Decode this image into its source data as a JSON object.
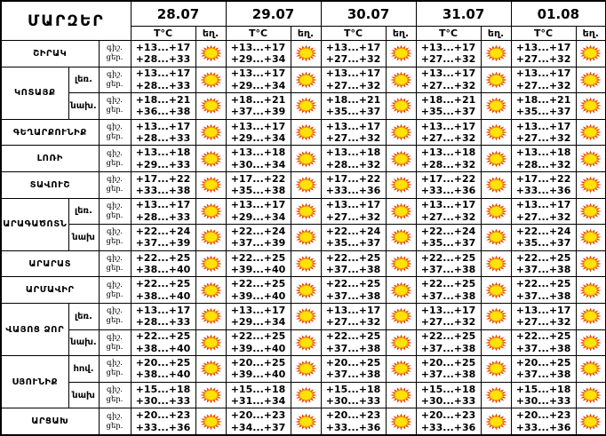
{
  "header": {
    "regions_label": "ՄԱՐԶԵՐ",
    "dates": [
      "28.07",
      "29.07",
      "30.07",
      "31.07",
      "01.08"
    ],
    "temp_label": "T°C",
    "weather_label": "եղ."
  },
  "labels": {
    "night": "գիշ.",
    "day": "ցեր."
  },
  "icons": {
    "weather": "sun-icon"
  },
  "colors": {
    "background": "#FFFFFF",
    "border": "#000000",
    "text": "#000000",
    "sun_rays": "#E0400A",
    "sun_ring": "#F59B00",
    "sun_core": "#FFE20A"
  },
  "rows": [
    {
      "region": "ՇԻՐԱԿ",
      "sub": "",
      "night": [
        "+13...+17",
        "+13...+17",
        "+13...+17",
        "+13...+17",
        "+13...+17"
      ],
      "day": [
        "+28...+33",
        "+29...+34",
        "+27...+32",
        "+27...+32",
        "+27...+32"
      ],
      "weather": [
        "sun",
        "sun",
        "sun",
        "sun",
        "sun"
      ]
    },
    {
      "region": "ԿՈՏԱՅՔ",
      "group_rows": 2,
      "sub": "լեռ.",
      "night": [
        "+13...+17",
        "+13...+17",
        "+13...+17",
        "+13...+17",
        "+13...+17"
      ],
      "day": [
        "+28...+33",
        "+29...+34",
        "+27...+32",
        "+27...+32",
        "+27...+32"
      ],
      "weather": [
        "sun",
        "sun",
        "sun",
        "sun",
        "sun"
      ]
    },
    {
      "region": "",
      "sub": "նախ.",
      "night": [
        "+18...+21",
        "+18...+21",
        "+18...+21",
        "+18...+21",
        "+18...+21"
      ],
      "day": [
        "+36...+38",
        "+37...+39",
        "+35...+37",
        "+35...+37",
        "+35...+37"
      ],
      "weather": [
        "sun",
        "sun",
        "sun",
        "sun",
        "sun"
      ]
    },
    {
      "region": "ԳԵՂԱՐՔՈՒՆԻՔ",
      "sub": "",
      "night": [
        "+13...+17",
        "+13...+17",
        "+13...+17",
        "+13...+17",
        "+13...+17"
      ],
      "day": [
        "+28...+33",
        "+29...+34",
        "+27...+32",
        "+27...+32",
        "+27...+32"
      ],
      "weather": [
        "sun",
        "sun",
        "sun",
        "sun",
        "sun"
      ]
    },
    {
      "region": "ԼՈՌԻ",
      "sub": "",
      "night": [
        "+13...+18",
        "+13...+18",
        "+13...+18",
        "+13...+18",
        "+13...+18"
      ],
      "day": [
        "+29...+33",
        "+30...+34",
        "+28...+32",
        "+28...+32",
        "+28...+32"
      ],
      "weather": [
        "sun",
        "sun",
        "sun",
        "sun",
        "sun"
      ]
    },
    {
      "region": "ՏԱՎՈՒՇ",
      "sub": "",
      "night": [
        "+17...+22",
        "+17...+22",
        "+17...+22",
        "+17...+22",
        "+17...+22"
      ],
      "day": [
        "+33...+38",
        "+35...+38",
        "+33...+36",
        "+33...+36",
        "+33...+36"
      ],
      "weather": [
        "sun",
        "sun",
        "sun",
        "sun",
        "sun"
      ]
    },
    {
      "region": "ԱՐԱԳԱԾՈՏՆ",
      "group_rows": 2,
      "sub": "լեռ.",
      "night": [
        "+13...+17",
        "+13...+17",
        "+13...+17",
        "+13...+17",
        "+13...+17"
      ],
      "day": [
        "+28...+33",
        "+29...+34",
        "+27...+32",
        "+27...+32",
        "+27...+32"
      ],
      "weather": [
        "sun",
        "sun",
        "sun",
        "sun",
        "sun"
      ]
    },
    {
      "region": "",
      "sub": "նախ",
      "night": [
        "+22...+24",
        "+22...+24",
        "+22...+24",
        "+22...+24",
        "+22...+24"
      ],
      "day": [
        "+37...+39",
        "+37...+39",
        "+35...+37",
        "+35...+37",
        "+35...+37"
      ],
      "weather": [
        "sun",
        "sun",
        "sun",
        "sun",
        "sun"
      ]
    },
    {
      "region": "ԱՐԱՐԱՏ",
      "sub": "",
      "night": [
        "+22...+25",
        "+22...+25",
        "+22...+25",
        "+22...+25",
        "+22...+25"
      ],
      "day": [
        "+38...+40",
        "+39...+40",
        "+37...+38",
        "+37...+38",
        "+37...+38"
      ],
      "weather": [
        "sun",
        "sun",
        "sun",
        "sun",
        "sun"
      ]
    },
    {
      "region": "ԱՐՄԱՎԻՐ",
      "sub": "",
      "night": [
        "+22...+25",
        "+22...+25",
        "+22...+25",
        "+22...+25",
        "+22...+25"
      ],
      "day": [
        "+38...+40",
        "+39...+40",
        "+37...+38",
        "+37...+38",
        "+37...+38"
      ],
      "weather": [
        "sun",
        "sun",
        "sun",
        "sun",
        "sun"
      ]
    },
    {
      "region": "ՎԱՅՈՑ ՁՈՐ",
      "group_rows": 2,
      "sub": "լեռ.",
      "night": [
        "+13...+17",
        "+13...+17",
        "+13...+17",
        "+13...+17",
        "+13...+17"
      ],
      "day": [
        "+28...+33",
        "+29...+34",
        "+27...+32",
        "+27...+32",
        "+27...+32"
      ],
      "weather": [
        "sun",
        "sun",
        "sun",
        "sun",
        "sun"
      ]
    },
    {
      "region": "",
      "sub": "նախ.",
      "night": [
        "+22...+25",
        "+22...+25",
        "+22...+25",
        "+22...+25",
        "+22...+25"
      ],
      "day": [
        "+38...+40",
        "+39...+40",
        "+37...+38",
        "+37...+38",
        "+37...+38"
      ],
      "weather": [
        "sun",
        "sun",
        "sun",
        "sun",
        "sun"
      ]
    },
    {
      "region": "ՍՅՈՒՆԻՔ",
      "group_rows": 2,
      "sub": "հով.",
      "night": [
        "+20...+25",
        "+20...+25",
        "+20...+25",
        "+20...+25",
        "+20...+25"
      ],
      "day": [
        "+38...+40",
        "+39...+40",
        "+37...+38",
        "+37...+38",
        "+37...+38"
      ],
      "weather": [
        "sun",
        "sun",
        "sun",
        "sun",
        "sun"
      ]
    },
    {
      "region": "",
      "sub": "նախ",
      "night": [
        "+15...+18",
        "+15...+18",
        "+15...+18",
        "+15...+18",
        "+15...+18"
      ],
      "day": [
        "+30...+33",
        "+31...+34",
        "+30...+33",
        "+30...+33",
        "+30...+33"
      ],
      "weather": [
        "sun",
        "sun",
        "sun",
        "sun",
        "sun"
      ]
    },
    {
      "region": "ԱՐՑԱԽ",
      "sub": "",
      "night": [
        "+20...+23",
        "+20...+23",
        "+20...+23",
        "+20...+23",
        "+20...+23"
      ],
      "day": [
        "+33...+36",
        "+34...+37",
        "+33...+36",
        "+33...+36",
        "+33...+36"
      ],
      "weather": [
        "sun",
        "sun",
        "sun",
        "sun",
        "sun"
      ]
    }
  ]
}
